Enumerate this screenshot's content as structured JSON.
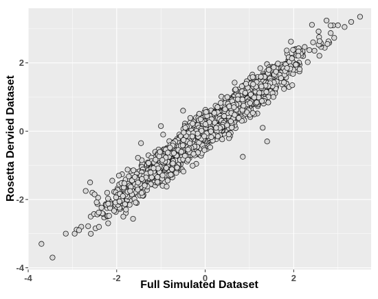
{
  "chart_data": {
    "type": "scatter",
    "xlabel": "Full Simulated Dataset",
    "ylabel": "Rosetta Dervied Dataset",
    "xlim": [
      -4.0,
      3.75
    ],
    "ylim": [
      -4.05,
      3.6
    ],
    "x_ticks": [
      -4,
      -2,
      0,
      2
    ],
    "y_ticks": [
      -4,
      -2,
      0,
      2
    ],
    "x_tick_labels": [
      "-4",
      "-2",
      "0",
      "2"
    ],
    "y_tick_labels": [
      "-4",
      "-2",
      "0",
      "2"
    ],
    "grid": true,
    "panel_background": "#ebebeb",
    "grid_color": "#ffffff",
    "point_fill": "#d9d9d9",
    "point_stroke": "#1a1a1a",
    "points": [
      {
        "x": -3.7,
        "y": -3.3
      },
      {
        "x": -3.45,
        "y": -3.7
      },
      {
        "x": -3.15,
        "y": -3.0
      },
      {
        "x": -2.95,
        "y": -3.0
      },
      {
        "x": -2.85,
        "y": -2.9
      },
      {
        "x": -2.7,
        "y": -1.75
      },
      {
        "x": -2.6,
        "y": -1.5
      },
      {
        "x": -2.55,
        "y": -1.8
      },
      {
        "x": -2.5,
        "y": -1.85
      },
      {
        "x": -2.4,
        "y": -2.8
      },
      {
        "x": -2.1,
        "y": -1.45
      },
      {
        "x": -1.95,
        "y": -1.3
      },
      {
        "x": -1.85,
        "y": -2.5
      },
      {
        "x": -1.45,
        "y": -0.35
      },
      {
        "x": -1.0,
        "y": 0.15
      },
      {
        "x": -0.95,
        "y": -0.1
      },
      {
        "x": -0.5,
        "y": 0.6
      },
      {
        "x": 0.5,
        "y": 1.0
      },
      {
        "x": 0.85,
        "y": -0.75
      },
      {
        "x": 1.3,
        "y": 0.1
      },
      {
        "x": 1.4,
        "y": -0.3
      },
      {
        "x": 3.0,
        "y": 3.1
      },
      {
        "x": 3.15,
        "y": 3.05
      },
      {
        "x": 3.3,
        "y": 3.2
      },
      {
        "x": 3.5,
        "y": 3.35
      }
    ],
    "bulk": {
      "count": 2600,
      "x_range": [
        -2.95,
        3.0
      ],
      "slope": 0.99,
      "intercept": 0.0,
      "residual_sd": 0.23
    }
  }
}
